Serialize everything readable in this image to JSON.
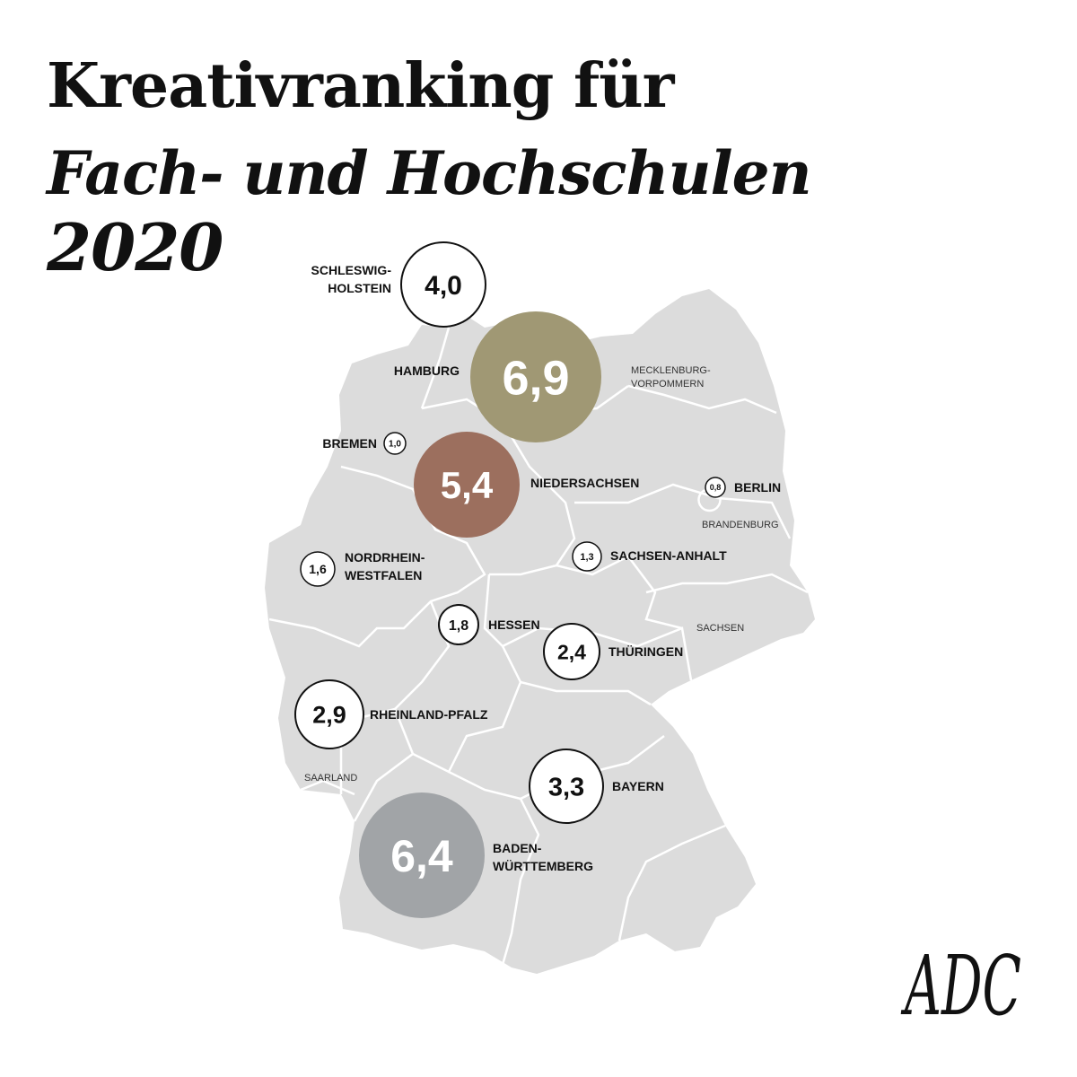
{
  "title": {
    "line1": "Kreativranking für",
    "line2": "Fach- und Hochschulen",
    "line3": "2020"
  },
  "colors": {
    "map_fill": "#dcdcdc",
    "border": "#ffffff",
    "hamburg": "#a09874",
    "niedersachsen": "#9c6f5e",
    "baden_wuerttemberg": "#a1a4a7",
    "circle_stroke": "#111111"
  },
  "regions": [
    {
      "id": "schleswig-holstein",
      "name_lines": [
        "SCHLESWIG-",
        "HOLSTEIN"
      ],
      "value": "4,0",
      "style": "outline"
    },
    {
      "id": "hamburg",
      "name_lines": [
        "HAMBURG"
      ],
      "value": "6,9",
      "style": "hamburg"
    },
    {
      "id": "bremen",
      "name_lines": [
        "BREMEN"
      ],
      "value": "1,0",
      "style": "outline"
    },
    {
      "id": "niedersachsen",
      "name_lines": [
        "NIEDERSACHSEN"
      ],
      "value": "5,4",
      "style": "niedersachsen"
    },
    {
      "id": "berlin",
      "name_lines": [
        "BERLIN"
      ],
      "value": "0,8",
      "style": "outline"
    },
    {
      "id": "nordrhein-westfalen",
      "name_lines": [
        "NORDRHEIN-",
        "WESTFALEN"
      ],
      "value": "1,6",
      "style": "outline"
    },
    {
      "id": "sachsen-anhalt",
      "name_lines": [
        "SACHSEN-ANHALT"
      ],
      "value": "1,3",
      "style": "outline"
    },
    {
      "id": "hessen",
      "name_lines": [
        "HESSEN"
      ],
      "value": "1,8",
      "style": "outline"
    },
    {
      "id": "thueringen",
      "name_lines": [
        "THÜRINGEN"
      ],
      "value": "2,4",
      "style": "outline"
    },
    {
      "id": "rheinland-pfalz",
      "name_lines": [
        "RHEINLAND-PFALZ"
      ],
      "value": "2,9",
      "style": "outline"
    },
    {
      "id": "bayern",
      "name_lines": [
        "BAYERN"
      ],
      "value": "3,3",
      "style": "outline"
    },
    {
      "id": "baden-wuerttemberg",
      "name_lines": [
        "BADEN-",
        "WÜRTTEMBERG"
      ],
      "value": "6,4",
      "style": "bw"
    }
  ],
  "plain_labels": [
    {
      "id": "mecklenburg-vorpommern",
      "lines": [
        "MECKLENBURG-",
        "VORPOMMERN"
      ]
    },
    {
      "id": "brandenburg",
      "lines": [
        "BRANDENBURG"
      ]
    },
    {
      "id": "sachsen",
      "lines": [
        "SACHSEN"
      ]
    },
    {
      "id": "saarland",
      "lines": [
        "SAARLAND"
      ]
    }
  ],
  "logo": {
    "icon": "adc-monogram-logo",
    "text": "ADC"
  }
}
